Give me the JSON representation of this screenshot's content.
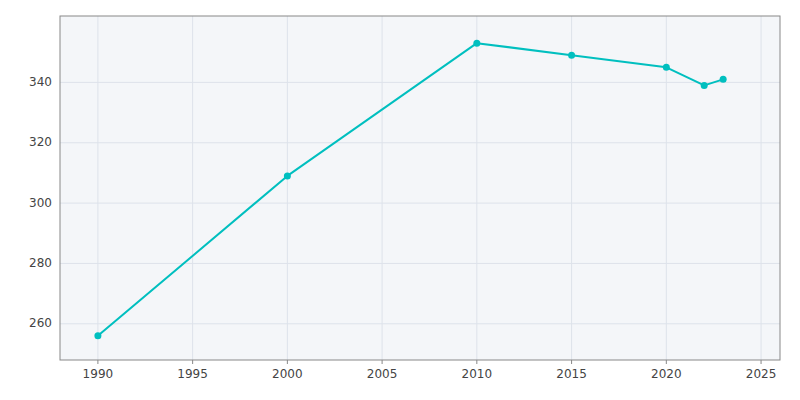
{
  "chart_data": {
    "type": "line",
    "x": [
      1990,
      2000,
      2010,
      2015,
      2020,
      2022,
      2023
    ],
    "values": [
      256,
      309,
      353,
      349,
      345,
      339,
      341
    ],
    "color": "#00BFBF",
    "marker": "circle",
    "xlim": [
      1988,
      2026
    ],
    "ylim": [
      248,
      362
    ],
    "xticks": [
      1990,
      1995,
      2000,
      2005,
      2010,
      2015,
      2020,
      2025
    ],
    "yticks": [
      260,
      280,
      300,
      320,
      340
    ],
    "grid": true
  }
}
